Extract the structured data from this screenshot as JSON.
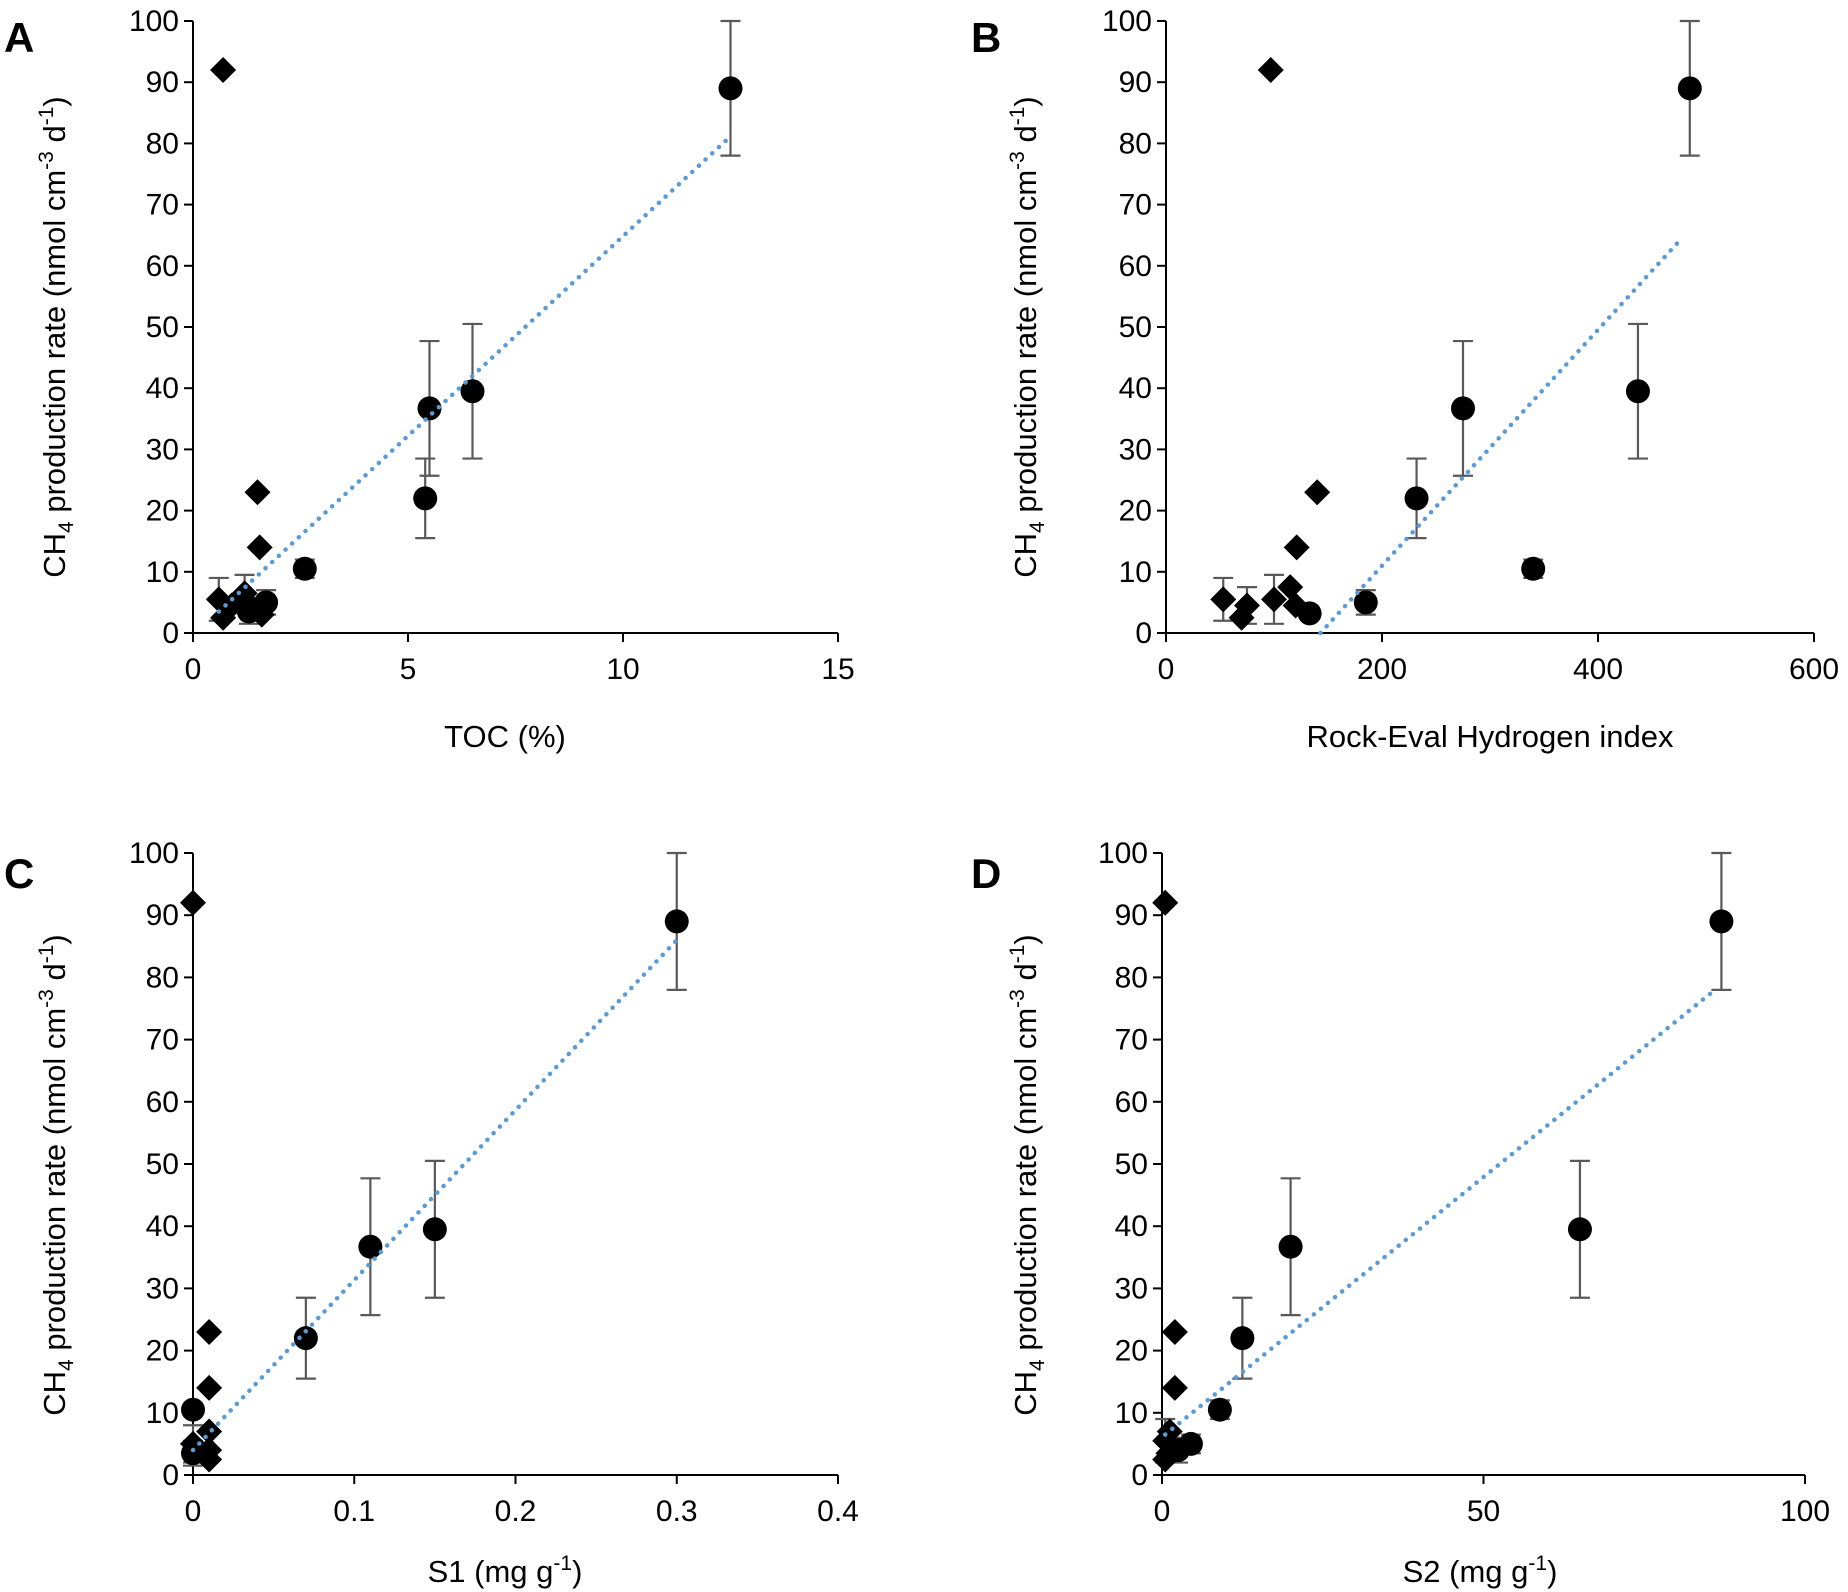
{
  "figure": {
    "colors": {
      "trendline": "#5b9bd5",
      "marker": "#000000",
      "errorbar": "#595959"
    }
  },
  "chart_data": [
    {
      "type": "scatter",
      "panel_label": "A",
      "xlabel": "TOC (%)",
      "ylabel": {
        "prefix": "CH",
        "subscript": "4",
        "middle": " production rate (nmol cm",
        "sup1": "-3",
        "space": " d",
        "sup2": "-1",
        "suffix": ")"
      },
      "xlim": [
        0,
        15
      ],
      "xticks": [
        0,
        5,
        10,
        15
      ],
      "xtick_labels": [
        "0",
        "5",
        "10",
        "15"
      ],
      "ylim": [
        0,
        100
      ],
      "yticks": [
        0,
        10,
        20,
        30,
        40,
        50,
        60,
        70,
        80,
        90,
        100
      ],
      "ytick_labels": [
        "0",
        "10",
        "20",
        "30",
        "40",
        "50",
        "60",
        "70",
        "80",
        "90",
        "100"
      ],
      "series": [
        {
          "name": "diamonds",
          "marker": "diamond",
          "points": [
            {
              "x": 0.7,
              "y": 92
            },
            {
              "x": 1.5,
              "y": 23
            },
            {
              "x": 1.55,
              "y": 14
            },
            {
              "x": 0.6,
              "y": 5.5,
              "err": 3.5
            },
            {
              "x": 0.7,
              "y": 2.5
            },
            {
              "x": 0.9,
              "y": 4.5
            },
            {
              "x": 1.2,
              "y": 6.5,
              "err": 3
            },
            {
              "x": 1.4,
              "y": 4
            },
            {
              "x": 1.6,
              "y": 3
            }
          ]
        },
        {
          "name": "circles",
          "marker": "circle",
          "points": [
            {
              "x": 12.5,
              "y": 89,
              "err": 11
            },
            {
              "x": 6.5,
              "y": 39.5,
              "err": 11
            },
            {
              "x": 5.5,
              "y": 36.7,
              "err": 11
            },
            {
              "x": 5.4,
              "y": 22,
              "err": 6.5
            },
            {
              "x": 2.6,
              "y": 10.5,
              "err": 1.5
            },
            {
              "x": 1.7,
              "y": 5,
              "err": 2
            },
            {
              "x": 1.3,
              "y": 3.5,
              "err": 2
            }
          ]
        }
      ],
      "trendline": {
        "x": [
          0.6,
          12.4
        ],
        "y": [
          3.5,
          80.5
        ]
      }
    },
    {
      "type": "scatter",
      "panel_label": "B",
      "xlabel": "Rock-Eval Hydrogen index",
      "ylabel": {
        "prefix": "CH",
        "subscript": "4",
        "middle": " production rate (nmol cm",
        "sup1": "-3",
        "space": " d",
        "sup2": "-1",
        "suffix": ")"
      },
      "xlim": [
        0,
        600
      ],
      "xticks": [
        0,
        200,
        400,
        600
      ],
      "xtick_labels": [
        "0",
        "200",
        "400",
        "600"
      ],
      "ylim": [
        0,
        100
      ],
      "yticks": [
        0,
        10,
        20,
        30,
        40,
        50,
        60,
        70,
        80,
        90,
        100
      ],
      "ytick_labels": [
        "0",
        "10",
        "20",
        "30",
        "40",
        "50",
        "60",
        "70",
        "80",
        "90",
        "100"
      ],
      "series": [
        {
          "name": "diamonds",
          "marker": "diamond",
          "points": [
            {
              "x": 97,
              "y": 92
            },
            {
              "x": 140,
              "y": 23
            },
            {
              "x": 121,
              "y": 14
            },
            {
              "x": 53,
              "y": 5.5,
              "err": 3.5
            },
            {
              "x": 70,
              "y": 2.5
            },
            {
              "x": 75,
              "y": 4.5,
              "err": 3
            },
            {
              "x": 100,
              "y": 5.5,
              "err": 4
            },
            {
              "x": 115,
              "y": 7.5
            },
            {
              "x": 120,
              "y": 4.5
            }
          ]
        },
        {
          "name": "circles",
          "marker": "circle",
          "points": [
            {
              "x": 485,
              "y": 89,
              "err": 11
            },
            {
              "x": 437,
              "y": 39.5,
              "err": 11
            },
            {
              "x": 275,
              "y": 36.7,
              "err": 11
            },
            {
              "x": 232,
              "y": 22,
              "err": 6.5
            },
            {
              "x": 340,
              "y": 10.5,
              "err": 1.5
            },
            {
              "x": 185,
              "y": 5,
              "err": 2
            },
            {
              "x": 133,
              "y": 3.2
            }
          ]
        }
      ],
      "trendline": {
        "x": [
          143,
          475
        ],
        "y": [
          0,
          64
        ]
      }
    },
    {
      "type": "scatter",
      "panel_label": "C",
      "xlabel": {
        "text": "S1 (mg g",
        "sup": "-1",
        "close": ")"
      },
      "ylabel": {
        "prefix": "CH",
        "subscript": "4",
        "middle": " production rate (nmol cm",
        "sup1": "-3",
        "space": " d",
        "sup2": "-1",
        "suffix": ")"
      },
      "xlim": [
        0,
        0.4
      ],
      "xticks": [
        0,
        0.1,
        0.2,
        0.3,
        0.4
      ],
      "xtick_labels": [
        "0",
        "0.1",
        "0.2",
        "0.3",
        "0.4"
      ],
      "ylim": [
        0,
        100
      ],
      "yticks": [
        0,
        10,
        20,
        30,
        40,
        50,
        60,
        70,
        80,
        90,
        100
      ],
      "ytick_labels": [
        "0",
        "10",
        "20",
        "30",
        "40",
        "50",
        "60",
        "70",
        "80",
        "90",
        "100"
      ],
      "series": [
        {
          "name": "diamonds",
          "marker": "diamond",
          "points": [
            {
              "x": 0.0,
              "y": 92
            },
            {
              "x": 0.01,
              "y": 23
            },
            {
              "x": 0.01,
              "y": 14
            },
            {
              "x": 0.0,
              "y": 5,
              "err": 3
            },
            {
              "x": 0.01,
              "y": 7
            },
            {
              "x": 0.01,
              "y": 4
            },
            {
              "x": 0.01,
              "y": 2.5
            }
          ]
        },
        {
          "name": "circles",
          "marker": "circle",
          "points": [
            {
              "x": 0.3,
              "y": 89,
              "err": 11
            },
            {
              "x": 0.15,
              "y": 39.5,
              "err": 11
            },
            {
              "x": 0.11,
              "y": 36.7,
              "err": 11
            },
            {
              "x": 0.07,
              "y": 22,
              "err": 6.5
            },
            {
              "x": 0.0,
              "y": 10.5
            },
            {
              "x": 0.0,
              "y": 3.5,
              "err": 2
            }
          ]
        }
      ],
      "trendline": {
        "x": [
          0.0,
          0.3
        ],
        "y": [
          4,
          86
        ]
      }
    },
    {
      "type": "scatter",
      "panel_label": "D",
      "xlabel": {
        "text": "S2 (mg g",
        "sup": "-1",
        "close": ")"
      },
      "ylabel": {
        "prefix": "CH",
        "subscript": "4",
        "middle": " production rate (nmol cm",
        "sup1": "-3",
        "space": " d",
        "sup2": "-1",
        "suffix": ")"
      },
      "xlim": [
        0,
        100
      ],
      "xticks": [
        0,
        50,
        100
      ],
      "xtick_labels": [
        "0",
        "50",
        "100"
      ],
      "ylim": [
        0,
        100
      ],
      "yticks": [
        0,
        10,
        20,
        30,
        40,
        50,
        60,
        70,
        80,
        90,
        100
      ],
      "ytick_labels": [
        "0",
        "10",
        "20",
        "30",
        "40",
        "50",
        "60",
        "70",
        "80",
        "90",
        "100"
      ],
      "series": [
        {
          "name": "diamonds",
          "marker": "diamond",
          "points": [
            {
              "x": 0.5,
              "y": 92
            },
            {
              "x": 2.0,
              "y": 23
            },
            {
              "x": 2.0,
              "y": 14
            },
            {
              "x": 0.5,
              "y": 5.5,
              "err": 3.5
            },
            {
              "x": 1.2,
              "y": 7
            },
            {
              "x": 1.0,
              "y": 3.5
            },
            {
              "x": 0.5,
              "y": 2.5
            }
          ]
        },
        {
          "name": "circles",
          "marker": "circle",
          "points": [
            {
              "x": 87,
              "y": 89,
              "err": 11
            },
            {
              "x": 65,
              "y": 39.5,
              "err": 11
            },
            {
              "x": 20,
              "y": 36.7,
              "err": 11
            },
            {
              "x": 12.5,
              "y": 22,
              "err": 6.5
            },
            {
              "x": 9,
              "y": 10.5,
              "err": 1.5
            },
            {
              "x": 4.5,
              "y": 5,
              "err": 1.5
            },
            {
              "x": 2.5,
              "y": 4,
              "err": 2
            }
          ]
        }
      ],
      "trendline": {
        "x": [
          0.5,
          86
        ],
        "y": [
          6.5,
          78
        ]
      }
    }
  ]
}
